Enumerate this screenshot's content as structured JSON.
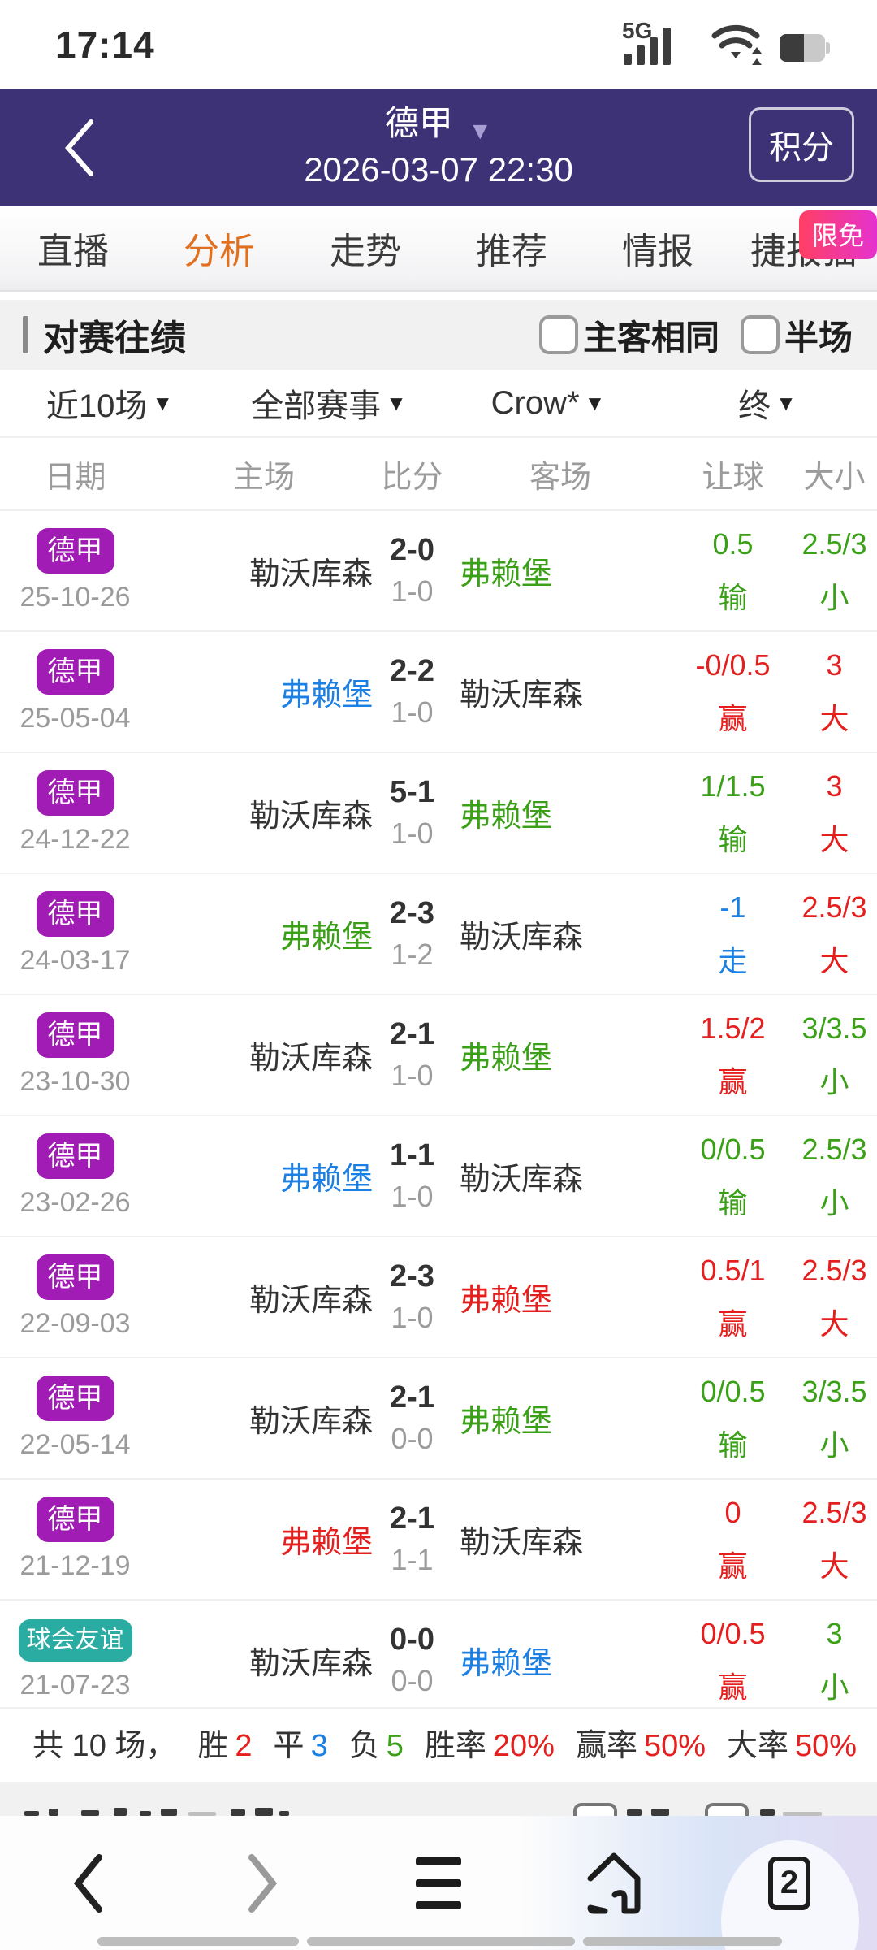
{
  "status": {
    "time": "17:14",
    "network_label": "5G"
  },
  "header": {
    "back_icon": "chevron-left",
    "league": "德甲",
    "dropdown_icon": "▼",
    "datetime": "2026-03-07 22:30",
    "points_button": "积分"
  },
  "tabs": {
    "items": [
      {
        "label": "直播",
        "active": false
      },
      {
        "label": "分析",
        "active": true
      },
      {
        "label": "走势",
        "active": false
      },
      {
        "label": "推荐",
        "active": false
      },
      {
        "label": "情报",
        "active": false
      },
      {
        "label": "捷报猫",
        "active": false
      }
    ],
    "promo_badge": "限免"
  },
  "section": {
    "title": "对赛往绩",
    "checkboxes": [
      {
        "label": "主客相同",
        "checked": false
      },
      {
        "label": "半场",
        "checked": false
      }
    ]
  },
  "filters": [
    {
      "label": "近10场",
      "caret": "▼"
    },
    {
      "label": "全部赛事",
      "caret": "▼"
    },
    {
      "label": "Crow*",
      "caret": "▼"
    },
    {
      "label": "终",
      "caret": "▼"
    }
  ],
  "table": {
    "headers": [
      "日期",
      "主场",
      "比分",
      "客场",
      "让球",
      "大小"
    ],
    "rows": [
      {
        "league": "德甲",
        "badge": "purple",
        "date": "25-10-26",
        "home": "勒沃库森",
        "home_color": "dark",
        "score": "2-0",
        "half": "1-0",
        "away": "弗赖堡",
        "away_color": "green",
        "handicap": "0.5",
        "handicap_result": "输",
        "handicap_color": "green",
        "ou": "2.5/3",
        "ou_result": "小",
        "ou_color": "green"
      },
      {
        "league": "德甲",
        "badge": "purple",
        "date": "25-05-04",
        "home": "弗赖堡",
        "home_color": "blue",
        "score": "2-2",
        "half": "1-0",
        "away": "勒沃库森",
        "away_color": "dark",
        "handicap": "-0/0.5",
        "handicap_result": "赢",
        "handicap_color": "red",
        "ou": "3",
        "ou_result": "大",
        "ou_color": "red"
      },
      {
        "league": "德甲",
        "badge": "purple",
        "date": "24-12-22",
        "home": "勒沃库森",
        "home_color": "dark",
        "score": "5-1",
        "half": "1-0",
        "away": "弗赖堡",
        "away_color": "green",
        "handicap": "1/1.5",
        "handicap_result": "输",
        "handicap_color": "green",
        "ou": "3",
        "ou_result": "大",
        "ou_color": "red"
      },
      {
        "league": "德甲",
        "badge": "purple",
        "date": "24-03-17",
        "home": "弗赖堡",
        "home_color": "green",
        "score": "2-3",
        "half": "1-2",
        "away": "勒沃库森",
        "away_color": "dark",
        "handicap": "-1",
        "handicap_result": "走",
        "handicap_color": "blue",
        "ou": "2.5/3",
        "ou_result": "大",
        "ou_color": "red"
      },
      {
        "league": "德甲",
        "badge": "purple",
        "date": "23-10-30",
        "home": "勒沃库森",
        "home_color": "dark",
        "score": "2-1",
        "half": "1-0",
        "away": "弗赖堡",
        "away_color": "green",
        "handicap": "1.5/2",
        "handicap_result": "赢",
        "handicap_color": "red",
        "ou": "3/3.5",
        "ou_result": "小",
        "ou_color": "green"
      },
      {
        "league": "德甲",
        "badge": "purple",
        "date": "23-02-26",
        "home": "弗赖堡",
        "home_color": "blue",
        "score": "1-1",
        "half": "1-0",
        "away": "勒沃库森",
        "away_color": "dark",
        "handicap": "0/0.5",
        "handicap_result": "输",
        "handicap_color": "green",
        "ou": "2.5/3",
        "ou_result": "小",
        "ou_color": "green"
      },
      {
        "league": "德甲",
        "badge": "purple",
        "date": "22-09-03",
        "home": "勒沃库森",
        "home_color": "dark",
        "score": "2-3",
        "half": "1-0",
        "away": "弗赖堡",
        "away_color": "red",
        "handicap": "0.5/1",
        "handicap_result": "赢",
        "handicap_color": "red",
        "ou": "2.5/3",
        "ou_result": "大",
        "ou_color": "red"
      },
      {
        "league": "德甲",
        "badge": "purple",
        "date": "22-05-14",
        "home": "勒沃库森",
        "home_color": "dark",
        "score": "2-1",
        "half": "0-0",
        "away": "弗赖堡",
        "away_color": "green",
        "handicap": "0/0.5",
        "handicap_result": "输",
        "handicap_color": "green",
        "ou": "3/3.5",
        "ou_result": "小",
        "ou_color": "green"
      },
      {
        "league": "德甲",
        "badge": "purple",
        "date": "21-12-19",
        "home": "弗赖堡",
        "home_color": "red",
        "score": "2-1",
        "half": "1-1",
        "away": "勒沃库森",
        "away_color": "dark",
        "handicap": "0",
        "handicap_result": "赢",
        "handicap_color": "red",
        "ou": "2.5/3",
        "ou_result": "大",
        "ou_color": "red"
      },
      {
        "league": "球会友谊",
        "badge": "teal",
        "date": "21-07-23",
        "home": "勒沃库森",
        "home_color": "dark",
        "score": "0-0",
        "half": "0-0",
        "away": "弗赖堡",
        "away_color": "blue",
        "handicap": "0/0.5",
        "handicap_result": "赢",
        "handicap_color": "red",
        "ou": "3",
        "ou_result": "小",
        "ou_color": "green"
      }
    ]
  },
  "summary": {
    "prefix": "共 10 场，",
    "items": [
      {
        "label": "胜",
        "value": "2",
        "color": "red"
      },
      {
        "label": "平",
        "value": "3",
        "color": "blue"
      },
      {
        "label": "负",
        "value": "5",
        "color": "green"
      },
      {
        "label": "胜率",
        "value": "20%",
        "color": "red"
      },
      {
        "label": "赢率",
        "value": "50%",
        "color": "red"
      },
      {
        "label": "大率",
        "value": "50%",
        "color": "red"
      }
    ]
  },
  "nav": {
    "tab_count": "2"
  },
  "colors": {
    "header_purple": "#3d3276",
    "tab_active_orange": "#e0701f",
    "badge_league_purple": "#a11cb4",
    "badge_friendly_teal": "#2aaca2",
    "promo_pink_gradient": [
      "#ff3f63",
      "#e532cf"
    ],
    "win_red": "#e51e1e",
    "lose_green": "#3aa017",
    "draw_blue": "#1b7fe3",
    "muted_gray": "#9b9b9b",
    "text_dark": "#333333"
  }
}
